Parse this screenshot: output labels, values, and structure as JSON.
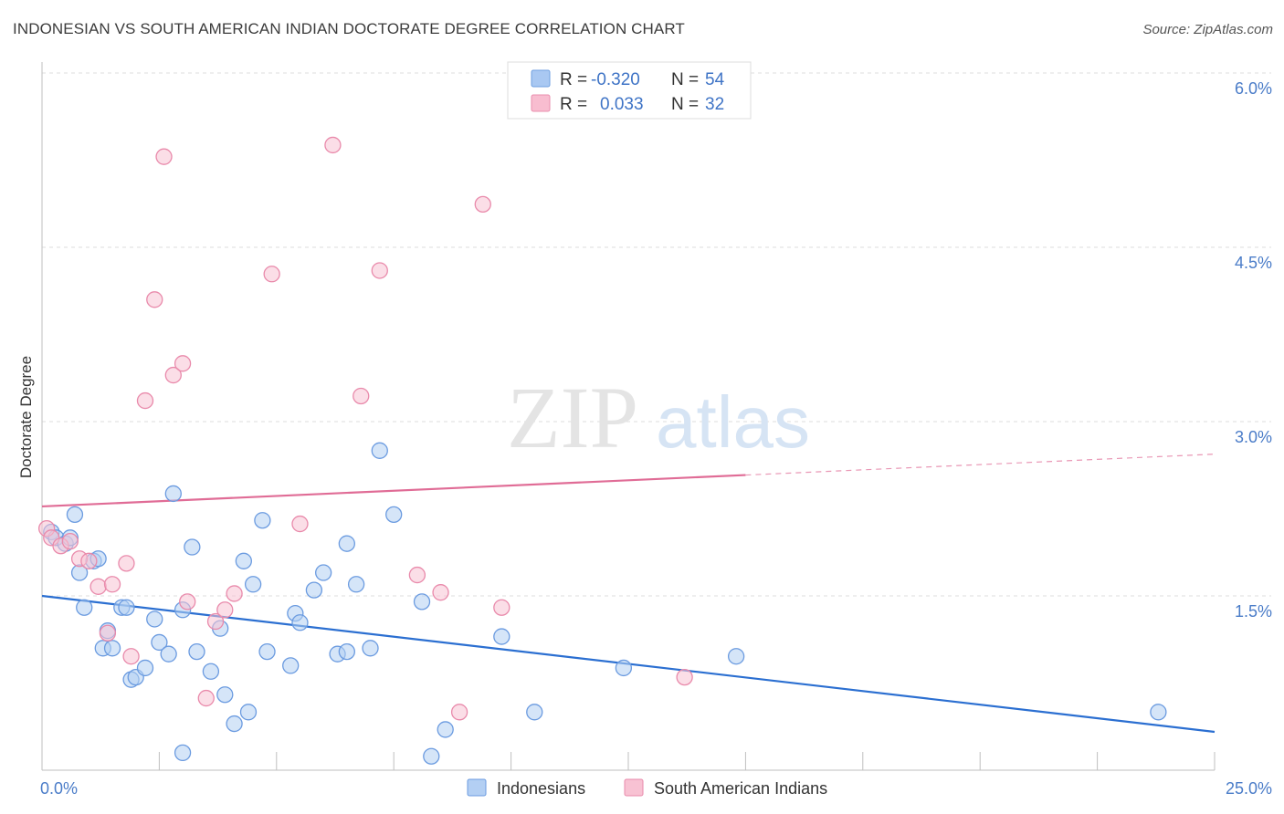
{
  "title": "INDONESIAN VS SOUTH AMERICAN INDIAN DOCTORATE DEGREE CORRELATION CHART",
  "source": "Source: ZipAtlas.com",
  "watermark": {
    "zip": "ZIP",
    "atlas": "atlas"
  },
  "chart_data": {
    "type": "scatter",
    "ylabel": "Doctorate Degree",
    "xlim": [
      0,
      25
    ],
    "ylim": [
      0,
      6.2
    ],
    "x_tick_labels": [
      "0.0%",
      "25.0%"
    ],
    "y_ticks": [
      1.5,
      3.0,
      4.5,
      6.0
    ],
    "y_tick_labels": [
      "1.5%",
      "3.0%",
      "4.5%",
      "6.0%"
    ],
    "grid": "horizontal dashed",
    "legend_placement": "top-center",
    "stats": [
      {
        "r_label": "R =",
        "r": "-0.320",
        "n_label": "N =",
        "n": "54",
        "color": "#a9c8f2",
        "stroke": "#6f9fe0"
      },
      {
        "r_label": "R =",
        "r": "0.033",
        "n_label": "N =",
        "n": "32",
        "color": "#f8bdd0",
        "stroke": "#ea8fae"
      }
    ],
    "series": [
      {
        "name": "Indonesians",
        "fill": "#b3cff3",
        "stroke": "#6b9be0",
        "line_color": "#2b6fd1",
        "trend": {
          "x0": 0,
          "y0": 1.5,
          "x1": 25,
          "y1": 0.33,
          "solid_to": 25
        },
        "points": [
          [
            0.2,
            2.05
          ],
          [
            0.3,
            2.0
          ],
          [
            0.5,
            1.95
          ],
          [
            0.6,
            2.0
          ],
          [
            0.7,
            2.2
          ],
          [
            0.8,
            1.7
          ],
          [
            0.9,
            1.4
          ],
          [
            1.1,
            1.8
          ],
          [
            1.3,
            1.05
          ],
          [
            1.4,
            1.2
          ],
          [
            1.5,
            1.05
          ],
          [
            1.7,
            1.4
          ],
          [
            1.8,
            1.4
          ],
          [
            1.9,
            0.78
          ],
          [
            2.0,
            0.8
          ],
          [
            2.2,
            0.88
          ],
          [
            2.4,
            1.3
          ],
          [
            2.5,
            1.1
          ],
          [
            2.7,
            1.0
          ],
          [
            2.8,
            2.38
          ],
          [
            3.0,
            1.38
          ],
          [
            3.3,
            1.02
          ],
          [
            3.6,
            0.85
          ],
          [
            3.8,
            1.22
          ],
          [
            3.9,
            0.65
          ],
          [
            4.1,
            0.4
          ],
          [
            4.3,
            1.8
          ],
          [
            4.5,
            1.6
          ],
          [
            4.7,
            2.15
          ],
          [
            4.8,
            1.02
          ],
          [
            5.3,
            0.9
          ],
          [
            5.4,
            1.35
          ],
          [
            5.5,
            1.27
          ],
          [
            5.8,
            1.55
          ],
          [
            6.0,
            1.7
          ],
          [
            6.3,
            1.0
          ],
          [
            6.5,
            1.02
          ],
          [
            6.5,
            1.95
          ],
          [
            6.7,
            1.6
          ],
          [
            7.0,
            1.05
          ],
          [
            7.2,
            2.75
          ],
          [
            7.5,
            2.2
          ],
          [
            8.1,
            1.45
          ],
          [
            8.6,
            0.35
          ],
          [
            9.8,
            1.15
          ],
          [
            10.5,
            0.5
          ],
          [
            12.4,
            0.88
          ],
          [
            14.8,
            0.98
          ],
          [
            23.8,
            0.5
          ],
          [
            8.3,
            0.12
          ],
          [
            3.0,
            0.15
          ],
          [
            4.4,
            0.5
          ],
          [
            3.2,
            1.92
          ],
          [
            1.2,
            1.82
          ]
        ]
      },
      {
        "name": "South American Indians",
        "fill": "#f8c2d3",
        "stroke": "#e98aab",
        "line_color": "#e06c96",
        "trend": {
          "x0": 0,
          "y0": 2.27,
          "x1": 25,
          "y1": 2.72,
          "solid_to": 15
        },
        "points": [
          [
            0.1,
            2.08
          ],
          [
            0.2,
            2.0
          ],
          [
            0.4,
            1.93
          ],
          [
            0.6,
            1.97
          ],
          [
            0.8,
            1.82
          ],
          [
            1.0,
            1.8
          ],
          [
            1.2,
            1.58
          ],
          [
            1.4,
            1.18
          ],
          [
            1.5,
            1.6
          ],
          [
            1.8,
            1.78
          ],
          [
            1.9,
            0.98
          ],
          [
            2.2,
            3.18
          ],
          [
            2.4,
            4.05
          ],
          [
            2.6,
            5.28
          ],
          [
            2.8,
            3.4
          ],
          [
            3.0,
            3.5
          ],
          [
            3.1,
            1.45
          ],
          [
            3.5,
            0.62
          ],
          [
            3.7,
            1.28
          ],
          [
            3.9,
            1.38
          ],
          [
            4.1,
            1.52
          ],
          [
            4.9,
            4.27
          ],
          [
            5.5,
            2.12
          ],
          [
            6.2,
            5.38
          ],
          [
            6.8,
            3.22
          ],
          [
            7.2,
            4.3
          ],
          [
            8.0,
            1.68
          ],
          [
            8.5,
            1.53
          ],
          [
            8.9,
            0.5
          ],
          [
            9.4,
            4.87
          ],
          [
            9.8,
            1.4
          ],
          [
            13.7,
            0.8
          ]
        ]
      }
    ]
  }
}
